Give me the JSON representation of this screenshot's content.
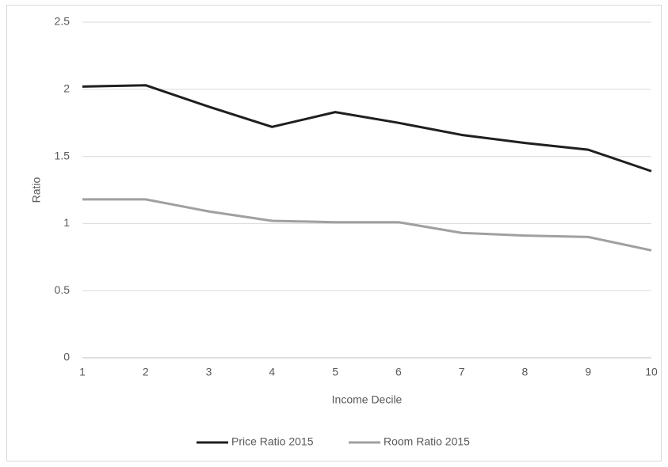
{
  "chart_data": {
    "type": "line",
    "x_label": "Income Decile",
    "y_label": "Ratio",
    "x": [
      1,
      2,
      3,
      4,
      5,
      6,
      7,
      8,
      9,
      10
    ],
    "series": [
      {
        "name": "Price Ratio 2015",
        "color": "#1f1f1f",
        "values": [
          2.02,
          2.03,
          1.87,
          1.72,
          1.83,
          1.75,
          1.66,
          1.6,
          1.55,
          1.39
        ]
      },
      {
        "name": "Room Ratio 2015",
        "color": "#a0a0a0",
        "values": [
          1.18,
          1.18,
          1.09,
          1.02,
          1.01,
          1.01,
          0.93,
          0.91,
          0.9,
          0.8
        ]
      }
    ],
    "xlim": [
      1,
      10
    ],
    "xticks": [
      1,
      2,
      3,
      4,
      5,
      6,
      7,
      8,
      9,
      10
    ],
    "ylim": [
      0,
      2.5
    ],
    "yticks": [
      0,
      0.5,
      1,
      1.5,
      2,
      2.5
    ],
    "grid": true,
    "legend": "bottom"
  }
}
